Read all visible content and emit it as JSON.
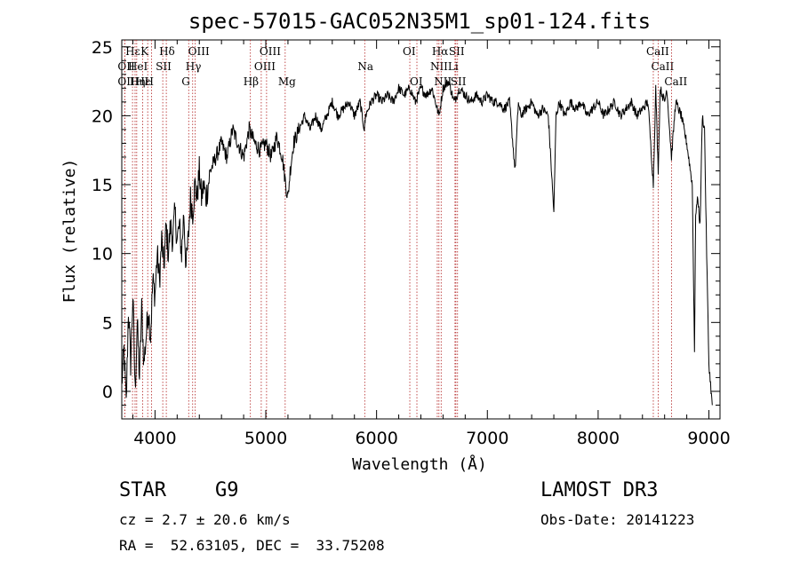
{
  "chart_data": {
    "type": "line",
    "title": "spec-57015-GAC052N35M1_sp01-124.fits",
    "xlabel": "Wavelength (Å)",
    "ylabel": "Flux (relative)",
    "xlim": [
      3700,
      9100
    ],
    "ylim": [
      -2,
      25.5
    ],
    "xticks": [
      4000,
      5000,
      6000,
      7000,
      8000,
      9000
    ],
    "yticks": [
      0,
      5,
      10,
      15,
      20,
      25
    ],
    "series": [
      {
        "name": "flux",
        "points": [
          [
            3700,
            0.5
          ],
          [
            3720,
            3
          ],
          [
            3740,
            -1
          ],
          [
            3760,
            6
          ],
          [
            3780,
            2
          ],
          [
            3800,
            7
          ],
          [
            3820,
            0
          ],
          [
            3840,
            5
          ],
          [
            3860,
            1
          ],
          [
            3880,
            6
          ],
          [
            3900,
            2
          ],
          [
            3920,
            4
          ],
          [
            3940,
            6
          ],
          [
            3960,
            4
          ],
          [
            3980,
            8
          ],
          [
            4000,
            7
          ],
          [
            4020,
            10
          ],
          [
            4040,
            8
          ],
          [
            4060,
            11
          ],
          [
            4080,
            9
          ],
          [
            4100,
            12
          ],
          [
            4120,
            10
          ],
          [
            4140,
            12
          ],
          [
            4160,
            11
          ],
          [
            4180,
            13
          ],
          [
            4200,
            11
          ],
          [
            4220,
            12
          ],
          [
            4240,
            10
          ],
          [
            4260,
            13
          ],
          [
            4280,
            9
          ],
          [
            4300,
            11
          ],
          [
            4320,
            14
          ],
          [
            4340,
            13
          ],
          [
            4360,
            15
          ],
          [
            4380,
            14
          ],
          [
            4400,
            16
          ],
          [
            4420,
            14
          ],
          [
            4440,
            15
          ],
          [
            4460,
            14
          ],
          [
            4480,
            15
          ],
          [
            4500,
            16
          ],
          [
            4550,
            17
          ],
          [
            4600,
            18
          ],
          [
            4650,
            17
          ],
          [
            4700,
            19
          ],
          [
            4750,
            18
          ],
          [
            4800,
            17
          ],
          [
            4850,
            19
          ],
          [
            4900,
            18
          ],
          [
            4950,
            17.5
          ],
          [
            5000,
            18
          ],
          [
            5050,
            17
          ],
          [
            5100,
            18.5
          ],
          [
            5150,
            17
          ],
          [
            5180,
            15
          ],
          [
            5200,
            14
          ],
          [
            5220,
            16
          ],
          [
            5250,
            18
          ],
          [
            5300,
            19
          ],
          [
            5350,
            20
          ],
          [
            5400,
            19
          ],
          [
            5450,
            20
          ],
          [
            5500,
            19
          ],
          [
            5550,
            20
          ],
          [
            5600,
            21
          ],
          [
            5650,
            20
          ],
          [
            5700,
            20.5
          ],
          [
            5750,
            21
          ],
          [
            5800,
            20
          ],
          [
            5850,
            21
          ],
          [
            5890,
            19
          ],
          [
            5900,
            20
          ],
          [
            5950,
            21
          ],
          [
            6000,
            21.5
          ],
          [
            6050,
            21
          ],
          [
            6100,
            21.5
          ],
          [
            6150,
            21
          ],
          [
            6200,
            22
          ],
          [
            6250,
            21.5
          ],
          [
            6300,
            22
          ],
          [
            6350,
            21
          ],
          [
            6400,
            22
          ],
          [
            6450,
            21.5
          ],
          [
            6500,
            22
          ],
          [
            6563,
            20
          ],
          [
            6600,
            22
          ],
          [
            6650,
            22.5
          ],
          [
            6700,
            21
          ],
          [
            6750,
            22
          ],
          [
            6800,
            21.5
          ],
          [
            6850,
            21
          ],
          [
            6900,
            21.5
          ],
          [
            6950,
            21
          ],
          [
            7000,
            21.5
          ],
          [
            7050,
            21
          ],
          [
            7100,
            21
          ],
          [
            7150,
            20.5
          ],
          [
            7200,
            21
          ],
          [
            7250,
            16
          ],
          [
            7280,
            21
          ],
          [
            7300,
            20
          ],
          [
            7350,
            20.5
          ],
          [
            7400,
            21
          ],
          [
            7450,
            20
          ],
          [
            7500,
            20.5
          ],
          [
            7550,
            20
          ],
          [
            7600,
            13
          ],
          [
            7620,
            20
          ],
          [
            7650,
            21
          ],
          [
            7700,
            20
          ],
          [
            7750,
            21
          ],
          [
            7800,
            20.5
          ],
          [
            7850,
            21
          ],
          [
            7900,
            20
          ],
          [
            7950,
            20.5
          ],
          [
            8000,
            21
          ],
          [
            8050,
            20
          ],
          [
            8100,
            20.5
          ],
          [
            8150,
            21
          ],
          [
            8200,
            20
          ],
          [
            8250,
            20.5
          ],
          [
            8300,
            21
          ],
          [
            8350,
            20
          ],
          [
            8400,
            20.5
          ],
          [
            8450,
            21
          ],
          [
            8498,
            15
          ],
          [
            8520,
            22
          ],
          [
            8542,
            16
          ],
          [
            8560,
            22
          ],
          [
            8600,
            21
          ],
          [
            8620,
            22
          ],
          [
            8662,
            17
          ],
          [
            8700,
            21
          ],
          [
            8750,
            20
          ],
          [
            8800,
            18
          ],
          [
            8850,
            15
          ],
          [
            8870,
            3
          ],
          [
            8880,
            13
          ],
          [
            8900,
            14
          ],
          [
            8920,
            12
          ],
          [
            8940,
            20
          ],
          [
            8960,
            19
          ],
          [
            8980,
            10
          ],
          [
            9000,
            2
          ],
          [
            9030,
            -1
          ]
        ]
      }
    ],
    "lines": [
      {
        "name": "Hε",
        "wl": 3797,
        "row": 1
      },
      {
        "name": "OII",
        "wl": 3727,
        "row": 2
      },
      {
        "name": "OII",
        "wl": 3727,
        "row": 3
      },
      {
        "name": "Hε",
        "wl": 3889,
        "row": 3
      },
      {
        "name": "Hη",
        "wl": 3835,
        "row": 3
      },
      {
        "name": "HeI",
        "wl": 3820,
        "row": 2
      },
      {
        "name": "K",
        "wl": 3934,
        "row": 1
      },
      {
        "name": "H",
        "wl": 3969,
        "row": 3
      },
      {
        "name": "SII",
        "wl": 4070,
        "row": 2
      },
      {
        "name": "Hδ",
        "wl": 4102,
        "row": 1
      },
      {
        "name": "OIII",
        "wl": 4363,
        "row": 1
      },
      {
        "name": "Hγ",
        "wl": 4340,
        "row": 2
      },
      {
        "name": "G",
        "wl": 4304,
        "row": 3
      },
      {
        "name": "Hβ",
        "wl": 4861,
        "row": 3
      },
      {
        "name": "OIII",
        "wl": 4959,
        "row": 2
      },
      {
        "name": "OIII",
        "wl": 5007,
        "row": 1
      },
      {
        "name": "Mg",
        "wl": 5175,
        "row": 3
      },
      {
        "name": "Na",
        "wl": 5893,
        "row": 2
      },
      {
        "name": "OI",
        "wl": 6300,
        "row": 1
      },
      {
        "name": "OI",
        "wl": 6364,
        "row": 3
      },
      {
        "name": "NII",
        "wl": 6548,
        "row": 2
      },
      {
        "name": "Hα",
        "wl": 6563,
        "row": 1
      },
      {
        "name": "NII",
        "wl": 6583,
        "row": 3
      },
      {
        "name": "SII",
        "wl": 6716,
        "row": 1
      },
      {
        "name": "Li",
        "wl": 6708,
        "row": 2
      },
      {
        "name": "SII",
        "wl": 6731,
        "row": 3
      },
      {
        "name": "CaII",
        "wl": 8498,
        "row": 1
      },
      {
        "name": "CaII",
        "wl": 8542,
        "row": 2
      },
      {
        "name": "CaII",
        "wl": 8662,
        "row": 3
      }
    ]
  },
  "info": {
    "object_class": "STAR",
    "subclass": "G9",
    "survey": "LAMOST DR3",
    "redshift": "cz = 2.7 ± 20.6 km/s",
    "obs_date": "Obs-Date: 20141223",
    "coords": "RA =  52.63105, DEC =  33.75208"
  }
}
